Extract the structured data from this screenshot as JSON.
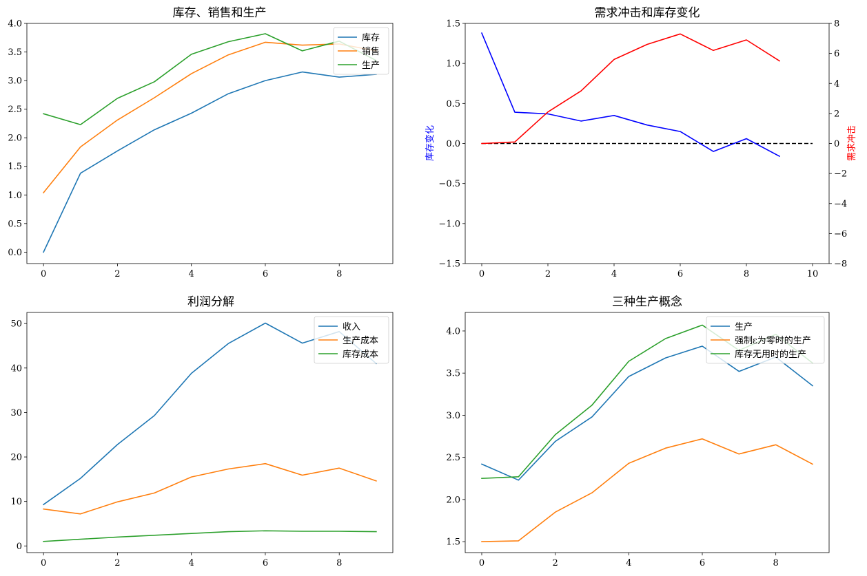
{
  "chart_data": [
    {
      "type": "line",
      "title": "库存、销售和生产",
      "x": [
        0,
        1,
        2,
        3,
        4,
        5,
        6,
        7,
        8,
        9
      ],
      "xticks": [
        0,
        2,
        4,
        6,
        8
      ],
      "xlim": [
        -0.45,
        9.45
      ],
      "ylim": [
        -0.2,
        4.0
      ],
      "yticks": [
        "0.0",
        "0.5",
        "1.0",
        "1.5",
        "2.0",
        "2.5",
        "3.0",
        "3.5",
        "4.0"
      ],
      "legend": "top-right",
      "series": [
        {
          "name": "库存",
          "color": "#1f77b4",
          "values": [
            0.0,
            1.38,
            1.77,
            2.14,
            2.43,
            2.77,
            3.0,
            3.15,
            3.06,
            3.11
          ]
        },
        {
          "name": "销售",
          "color": "#ff7f0e",
          "values": [
            1.04,
            1.84,
            2.31,
            2.7,
            3.12,
            3.45,
            3.67,
            3.62,
            3.64,
            3.52
          ]
        },
        {
          "name": "生产",
          "color": "#2ca02c",
          "values": [
            2.42,
            2.23,
            2.69,
            2.98,
            3.46,
            3.68,
            3.82,
            3.52,
            3.69,
            3.35
          ]
        }
      ]
    },
    {
      "type": "line",
      "title": "需求冲击和库存变化",
      "x": [
        0,
        1,
        2,
        3,
        4,
        5,
        6,
        7,
        8,
        9
      ],
      "xticks": [
        0,
        2,
        4,
        6,
        8,
        10
      ],
      "xlim": [
        -0.5,
        10.5
      ],
      "ylim": [
        -1.5,
        1.5
      ],
      "yticks": [
        "−1.5",
        "−1.0",
        "−0.5",
        "0.0",
        "0.5",
        "1.0",
        "1.5"
      ],
      "ylabel": "库存变化",
      "ylabel_color": "#0000ff",
      "y2lim": [
        -8,
        8
      ],
      "y2ticks": [
        "−8",
        "−6",
        "−4",
        "−2",
        "0",
        "2",
        "4",
        "6",
        "8"
      ],
      "y2label": "需求冲击",
      "y2label_color": "#ff0000",
      "series": [
        {
          "axis": "left",
          "color": "#0000ff",
          "values": [
            1.38,
            0.39,
            0.37,
            0.28,
            0.35,
            0.23,
            0.15,
            -0.1,
            0.06,
            -0.16
          ]
        },
        {
          "axis": "right",
          "color": "#ff0000",
          "values": [
            0.0,
            0.1,
            2.1,
            3.5,
            5.6,
            6.6,
            7.3,
            6.2,
            6.9,
            5.5
          ]
        }
      ],
      "reference_line": {
        "x": [
          0,
          10
        ],
        "y": 0,
        "style": "dashed",
        "color": "#000000"
      }
    },
    {
      "type": "line",
      "title": "利润分解",
      "x": [
        0,
        1,
        2,
        3,
        4,
        5,
        6,
        7,
        8,
        9
      ],
      "xticks": [
        0,
        2,
        4,
        6,
        8
      ],
      "xlim": [
        -0.45,
        9.45
      ],
      "ylim": [
        -1.5,
        52.5
      ],
      "yticks": [
        "0",
        "10",
        "20",
        "30",
        "40",
        "50"
      ],
      "legend": "top-right",
      "series": [
        {
          "name": "收入",
          "color": "#1f77b4",
          "values": [
            9.3,
            15.2,
            22.8,
            29.3,
            38.8,
            45.5,
            50.1,
            45.6,
            48.2,
            41.0
          ]
        },
        {
          "name": "生产成本",
          "color": "#ff7f0e",
          "values": [
            8.3,
            7.2,
            9.9,
            11.9,
            15.5,
            17.3,
            18.5,
            15.9,
            17.5,
            14.6
          ]
        },
        {
          "name": "库存成本",
          "color": "#2ca02c",
          "values": [
            1.0,
            1.5,
            2.0,
            2.4,
            2.8,
            3.2,
            3.4,
            3.3,
            3.3,
            3.2
          ]
        }
      ]
    },
    {
      "type": "line",
      "title": "三种生产概念",
      "x": [
        0,
        1,
        2,
        3,
        4,
        5,
        6,
        7,
        8,
        9
      ],
      "xticks": [
        0,
        2,
        4,
        6,
        8
      ],
      "xlim": [
        -0.45,
        9.45
      ],
      "ylim": [
        1.37,
        4.22
      ],
      "yticks": [
        "1.5",
        "2.0",
        "2.5",
        "3.0",
        "3.5",
        "4.0"
      ],
      "legend": "top-right",
      "series": [
        {
          "name": "生产",
          "color": "#1f77b4",
          "values": [
            2.42,
            2.23,
            2.69,
            2.98,
            3.46,
            3.68,
            3.82,
            3.52,
            3.69,
            3.35
          ]
        },
        {
          "name": "强制ε为零时的生产",
          "color": "#ff7f0e",
          "values": [
            1.5,
            1.51,
            1.85,
            2.08,
            2.43,
            2.61,
            2.72,
            2.54,
            2.65,
            2.42
          ]
        },
        {
          "name": "库存无用时的生产",
          "color": "#2ca02c",
          "values": [
            2.25,
            2.27,
            2.77,
            3.12,
            3.64,
            3.91,
            4.07,
            3.77,
            3.96,
            3.62
          ]
        }
      ]
    }
  ]
}
